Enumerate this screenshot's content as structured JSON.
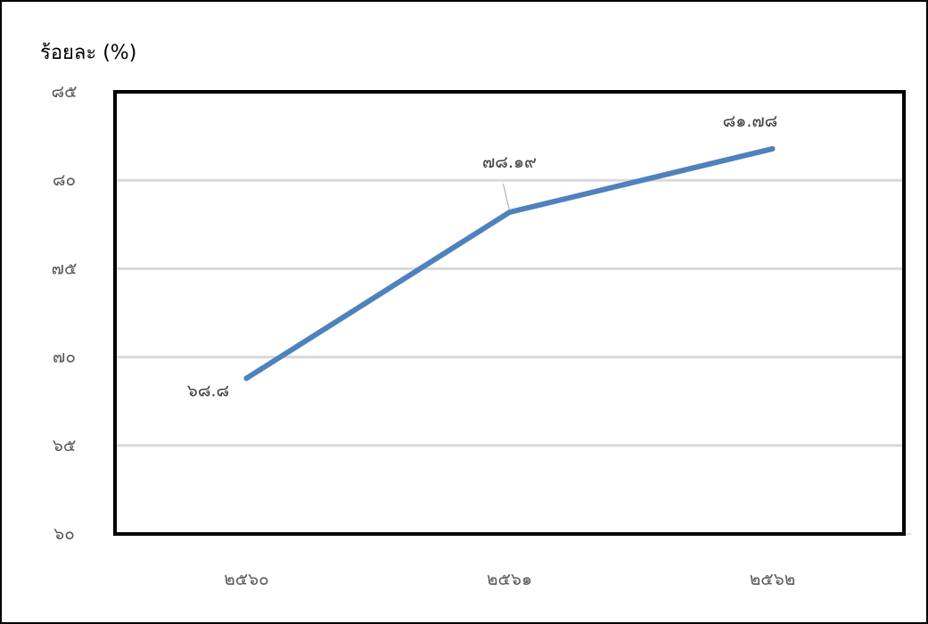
{
  "chart_data": {
    "type": "line",
    "title": "",
    "xlabel": "",
    "ylabel": "ร้อยละ (%)",
    "categories": [
      "๒๕๖๐",
      "๒๕๖๑",
      "๒๕๖๒"
    ],
    "series": [
      {
        "values": [
          68.8,
          78.19,
          81.78
        ],
        "data_labels": [
          "๖๘.๘",
          "๗๘.๑๙",
          "๘๑.๗๘"
        ]
      }
    ],
    "ylim": [
      60,
      85
    ],
    "yticks": [
      60,
      65,
      70,
      75,
      80,
      85
    ],
    "ytick_labels": [
      "๖๐",
      "๖๕",
      "๗๐",
      "๗๕",
      "๘๐",
      "๘๕"
    ],
    "grid": true,
    "legend": "none",
    "colors": {
      "series": "#4f81bd",
      "grid": "#d9d9d9",
      "plot_border": "#000000",
      "tick_text": "#595959",
      "label_text": "#404040"
    }
  }
}
